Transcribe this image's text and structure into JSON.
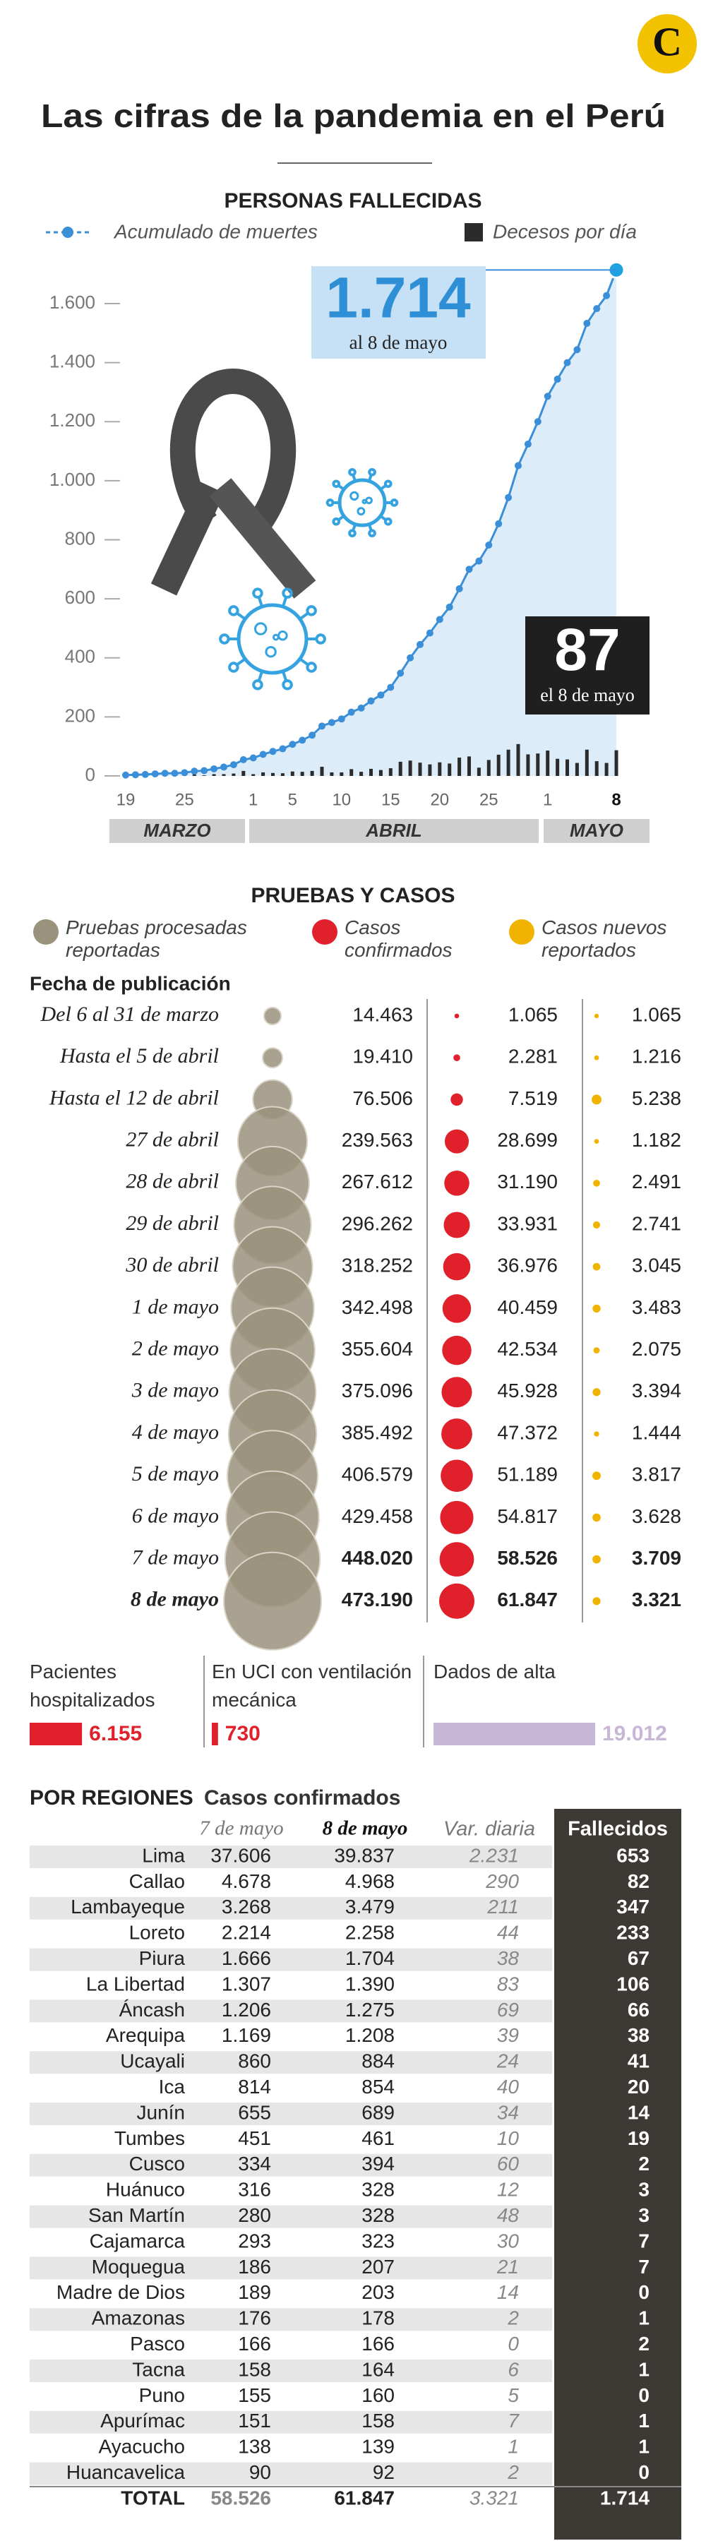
{
  "header": {
    "logo": "C",
    "title": "Las cifras de la pandemia en el Perú"
  },
  "chart_data": [
    {
      "type": "line",
      "title": "PERSONAS FALLECIDAS",
      "categories": [
        "19",
        null,
        null,
        null,
        null,
        null,
        "25",
        null,
        null,
        null,
        null,
        null,
        null,
        "1",
        null,
        null,
        null,
        "5",
        null,
        null,
        null,
        null,
        "10",
        null,
        null,
        null,
        null,
        "15",
        null,
        null,
        null,
        null,
        "20",
        null,
        null,
        null,
        null,
        "25",
        null,
        null,
        null,
        null,
        null,
        "1",
        null,
        null,
        null,
        null,
        null,
        null,
        "8"
      ],
      "months": [
        "MARZO",
        "ABRIL",
        "MAYO"
      ],
      "series": [
        {
          "name": "Acumulado de muertes",
          "color": "#3b8ed8",
          "values": [
            3,
            4,
            5,
            7,
            9,
            9,
            11,
            16,
            18,
            24,
            30,
            38,
            55,
            61,
            73,
            83,
            92,
            107,
            121,
            138,
            169,
            181,
            193,
            216,
            230,
            254,
            274,
            300,
            348,
            400,
            445,
            484,
            530,
            572,
            634,
            700,
            728,
            782,
            854,
            943,
            1051,
            1124,
            1200,
            1286,
            1344,
            1400,
            1444,
            1533,
            1583,
            1627,
            1714
          ]
        },
        {
          "name": "Decesos por día",
          "color": "#2b2b2b",
          "type": "bar",
          "values": [
            3,
            1,
            1,
            2,
            2,
            0,
            2,
            5,
            2,
            6,
            6,
            8,
            17,
            6,
            12,
            10,
            9,
            15,
            14,
            17,
            31,
            12,
            12,
            23,
            14,
            24,
            20,
            26,
            48,
            52,
            45,
            39,
            46,
            42,
            62,
            66,
            28,
            54,
            72,
            89,
            108,
            73,
            76,
            86,
            58,
            56,
            44,
            89,
            50,
            44,
            87
          ]
        }
      ],
      "ylim": [
        0,
        1600
      ],
      "yticks": [
        0,
        200,
        400,
        600,
        800,
        {
          "value": 1000,
          "label": "1.000"
        },
        {
          "value": 1200,
          "label": "1.200"
        },
        {
          "value": 1400,
          "label": "1.400"
        },
        {
          "value": 1600,
          "label": "1.600"
        }
      ],
      "annotations": [
        "1.714",
        "al 8 de mayo",
        "87",
        "el 8 de mayo"
      ]
    },
    {
      "type": "bubble-table",
      "title": "PRUEBAS Y CASOS",
      "row_header": "Fecha de publicación",
      "categories": [
        "Del 6 al 31 de marzo",
        "Hasta el 5 de abril",
        "Hasta el 12 de abril",
        "27 de abril",
        "28 de abril",
        "29 de abril",
        "30 de abril",
        "1 de mayo",
        "2 de mayo",
        "3 de mayo",
        "4 de mayo",
        "5 de mayo",
        "6 de mayo",
        "7 de mayo",
        "8 de mayo"
      ],
      "series": [
        {
          "name": "Pruebas procesadas reportadas",
          "color": "#9b927d",
          "values": [
            14463,
            19410,
            76506,
            239563,
            267612,
            296262,
            318252,
            342498,
            355604,
            375096,
            385492,
            406579,
            429458,
            448020,
            473190
          ],
          "value_labels": [
            "14.463",
            "19.410",
            "76.506",
            "239.563",
            "267.612",
            "296.262",
            "318.252",
            "342.498",
            "355.604",
            "375.096",
            "385.492",
            "406.579",
            "429.458",
            "448.020",
            "473.190"
          ]
        },
        {
          "name": "Casos confirmados",
          "color": "#e0202a",
          "values": [
            1065,
            2281,
            7519,
            28699,
            31190,
            33931,
            36976,
            40459,
            42534,
            45928,
            47372,
            51189,
            54817,
            58526,
            61847
          ],
          "value_labels": [
            "1.065",
            "2.281",
            "7.519",
            "28.699",
            "31.190",
            "33.931",
            "36.976",
            "40.459",
            "42.534",
            "45.928",
            "47.372",
            "51.189",
            "54.817",
            "58.526",
            "61.847"
          ]
        },
        {
          "name": "Casos nuevos reportados",
          "color": "#f0b400",
          "values": [
            1065,
            1216,
            5238,
            1182,
            2491,
            2741,
            3045,
            3483,
            2075,
            3394,
            1444,
            3817,
            3628,
            3709,
            3321
          ],
          "value_labels": [
            "1.065",
            "1.216",
            "5.238",
            "1.182",
            "2.491",
            "2.741",
            "3.045",
            "3.483",
            "2.075",
            "3.394",
            "1.444",
            "3.817",
            "3.628",
            "3.709",
            "3.321"
          ]
        }
      ]
    },
    {
      "type": "hbar",
      "categories": [
        "Pacientes hospitalizados",
        "En UCI con ventilación mecánica",
        "Dados de alta"
      ],
      "values": [
        6155,
        730,
        19012
      ],
      "value_labels": [
        "6.155",
        "730",
        "19.012"
      ],
      "colors": [
        "#e0202a",
        "#e0202a",
        "#c8b6d6"
      ]
    }
  ],
  "regions": {
    "title": "POR REGIONES",
    "subtitle": "Casos confirmados",
    "columns": [
      "7 de mayo",
      "8 de mayo",
      "Var. diaria",
      "Fallecidos"
    ],
    "rows": [
      [
        "Lima",
        "37.606",
        "39.837",
        "2.231",
        "653"
      ],
      [
        "Callao",
        "4.678",
        "4.968",
        "290",
        "82"
      ],
      [
        "Lambayeque",
        "3.268",
        "3.479",
        "211",
        "347"
      ],
      [
        "Loreto",
        "2.214",
        "2.258",
        "44",
        "233"
      ],
      [
        "Piura",
        "1.666",
        "1.704",
        "38",
        "67"
      ],
      [
        "La Libertad",
        "1.307",
        "1.390",
        "83",
        "106"
      ],
      [
        "Áncash",
        "1.206",
        "1.275",
        "69",
        "66"
      ],
      [
        "Arequipa",
        "1.169",
        "1.208",
        "39",
        "38"
      ],
      [
        "Ucayali",
        "860",
        "884",
        "24",
        "41"
      ],
      [
        "Ica",
        "814",
        "854",
        "40",
        "20"
      ],
      [
        "Junín",
        "655",
        "689",
        "34",
        "14"
      ],
      [
        "Tumbes",
        "451",
        "461",
        "10",
        "19"
      ],
      [
        "Cusco",
        "334",
        "394",
        "60",
        "2"
      ],
      [
        "Huánuco",
        "316",
        "328",
        "12",
        "3"
      ],
      [
        "San Martín",
        "280",
        "328",
        "48",
        "3"
      ],
      [
        "Cajamarca",
        "293",
        "323",
        "30",
        "7"
      ],
      [
        "Moquegua",
        "186",
        "207",
        "21",
        "7"
      ],
      [
        "Madre de Dios",
        "189",
        "203",
        "14",
        "0"
      ],
      [
        "Amazonas",
        "176",
        "178",
        "2",
        "1"
      ],
      [
        "Pasco",
        "166",
        "166",
        "0",
        "2"
      ],
      [
        "Tacna",
        "158",
        "164",
        "6",
        "1"
      ],
      [
        "Puno",
        "155",
        "160",
        "5",
        "0"
      ],
      [
        "Apurímac",
        "151",
        "158",
        "7",
        "1"
      ],
      [
        "Ayacucho",
        "138",
        "139",
        "1",
        "1"
      ],
      [
        "Huancavelica",
        "90",
        "92",
        "2",
        "0"
      ],
      [
        "TOTAL",
        "58.526",
        "61.847",
        "3.321",
        "1.714"
      ]
    ]
  }
}
